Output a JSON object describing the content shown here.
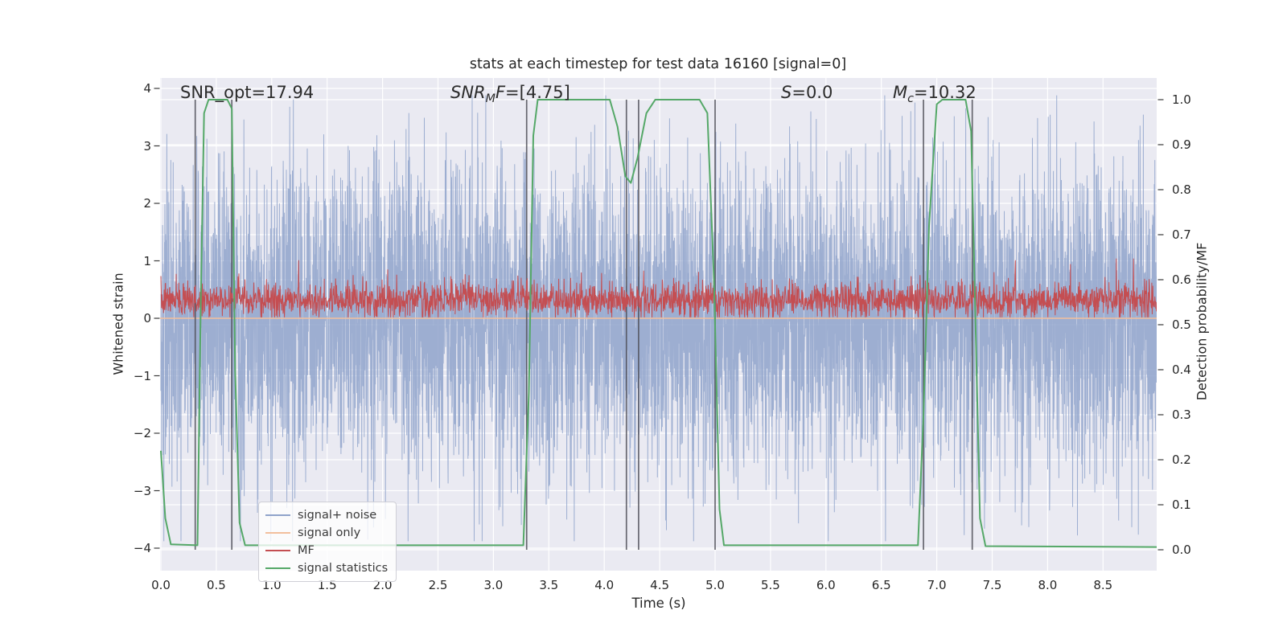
{
  "title": "stats at each timestep for test data 16160 [signal=0]",
  "annotations": {
    "snr_opt": {
      "text": "SNR_opt=17.94"
    },
    "snr_mf": {
      "base": "SNR",
      "sub": "M",
      "base2": "F",
      "rest": "=[4.75]"
    },
    "s": {
      "base": "S",
      "rest": "=0.0"
    },
    "mc": {
      "base": "M",
      "sub": "c",
      "rest": "=10.32"
    }
  },
  "legend": {
    "items": [
      {
        "label": "signal+ noise",
        "color": "#8fa3cb"
      },
      {
        "label": "signal only",
        "color": "#f2bf9d"
      },
      {
        "label": "MF",
        "color": "#c44e52"
      },
      {
        "label": "signal statistics",
        "color": "#55a868"
      }
    ]
  },
  "colors": {
    "figure_bg": "#ffffff",
    "plot_bg": "#eaeaf2",
    "grid": "#ffffff",
    "marker_line": "#4f4f58",
    "text": "#262626",
    "tick_dash": "#3a3a3a"
  },
  "chart_data": {
    "type": "line",
    "title": "stats at each timestep for test data 16160 [signal=0]",
    "xlabel": "Time (s)",
    "ylabel_left": "Whitened strain",
    "ylabel_right": "Detection probability/MF",
    "xlim": [
      0,
      9
    ],
    "ylim_left": [
      -4.4,
      4.2
    ],
    "ylim_right": [
      -0.046,
      1.06
    ],
    "t_max": 8.985,
    "grid": true,
    "x_ticks": {
      "values": [
        0,
        0.5,
        1,
        1.5,
        2,
        2.5,
        3,
        3.5,
        4,
        4.5,
        5,
        5.5,
        6,
        6.5,
        7,
        7.5,
        8,
        8.5
      ],
      "labels": [
        "0.0",
        "0.5",
        "1.0",
        "1.5",
        "2.0",
        "2.5",
        "3.0",
        "3.5",
        "4.0",
        "4.5",
        "5.0",
        "5.5",
        "6.0",
        "6.5",
        "7.0",
        "7.5",
        "8.0",
        "8.5"
      ]
    },
    "y_left_ticks": {
      "values": [
        4,
        3,
        2,
        1,
        0,
        -1,
        -2,
        -3,
        -4
      ],
      "labels": [
        "4",
        "3",
        "2",
        "1",
        "0",
        "−1",
        "−2",
        "−3",
        "−4"
      ]
    },
    "y_right_ticks": {
      "values": [
        1.0,
        0.9,
        0.8,
        0.7,
        0.6,
        0.5,
        0.4,
        0.3,
        0.2,
        0.1,
        0.0
      ],
      "labels": [
        "1.0",
        "0.9",
        "0.8",
        "0.7",
        "0.6",
        "0.5",
        "0.4",
        "0.3",
        "0.2",
        "0.1",
        "0.0"
      ]
    },
    "annotations_text": [
      "SNR_opt=17.94",
      "SNR_MF=[4.75]",
      "S=0.0",
      "M_c=10.32"
    ],
    "marker_lines": {
      "t": [
        0.31,
        0.64,
        3.3,
        4.2,
        4.31,
        5.0,
        6.88,
        7.32
      ],
      "axis": "right",
      "span": [
        0,
        1
      ],
      "color": "#4f4f58",
      "width": 1.7
    },
    "series": [
      {
        "name": "signal+ noise",
        "kind": "noise",
        "axis": "left",
        "color": "#8fa3cb",
        "opacity": 0.85,
        "n": 6000,
        "mean": 0,
        "std": 1.32,
        "clip": [
          -3.88,
          3.88
        ],
        "seed": 42,
        "spike_prob": 0,
        "width": 1
      },
      {
        "name": "signal only",
        "kind": "const",
        "axis": "left",
        "color": "#f2bf9d",
        "value": 0,
        "width": 1.6
      },
      {
        "name": "MF",
        "kind": "noise",
        "axis": "left",
        "color": "#c44e52",
        "opacity": 1,
        "n": 3000,
        "mean": 0.32,
        "std": 0.15,
        "clip": [
          0.015,
          1.04
        ],
        "seed": 7,
        "spike_prob": 0.003,
        "width": 1
      },
      {
        "name": "signal statistics",
        "kind": "polyline",
        "axis": "right",
        "color": "#55a868",
        "width": 2,
        "points": [
          [
            0,
            0.22
          ],
          [
            0.04,
            0.07
          ],
          [
            0.09,
            0.012
          ],
          [
            0.33,
            0.01
          ],
          [
            0.36,
            0.55
          ],
          [
            0.39,
            0.97
          ],
          [
            0.43,
            1.0
          ],
          [
            0.6,
            1.0
          ],
          [
            0.64,
            0.98
          ],
          [
            0.67,
            0.4
          ],
          [
            0.71,
            0.06
          ],
          [
            0.76,
            0.01
          ],
          [
            3.27,
            0.01
          ],
          [
            3.32,
            0.35
          ],
          [
            3.36,
            0.92
          ],
          [
            3.4,
            1.0
          ],
          [
            4.05,
            1.0
          ],
          [
            4.12,
            0.94
          ],
          [
            4.19,
            0.83
          ],
          [
            4.24,
            0.815
          ],
          [
            4.3,
            0.87
          ],
          [
            4.38,
            0.97
          ],
          [
            4.46,
            1.0
          ],
          [
            4.86,
            1.0
          ],
          [
            4.93,
            0.97
          ],
          [
            4.99,
            0.6
          ],
          [
            5.04,
            0.09
          ],
          [
            5.08,
            0.01
          ],
          [
            6.83,
            0.01
          ],
          [
            6.88,
            0.3
          ],
          [
            6.93,
            0.72
          ],
          [
            7.0,
            0.99
          ],
          [
            7.05,
            1.0
          ],
          [
            7.26,
            1.0
          ],
          [
            7.31,
            0.93
          ],
          [
            7.35,
            0.5
          ],
          [
            7.39,
            0.07
          ],
          [
            7.44,
            0.008
          ],
          [
            8.985,
            0.006
          ]
        ]
      }
    ]
  }
}
